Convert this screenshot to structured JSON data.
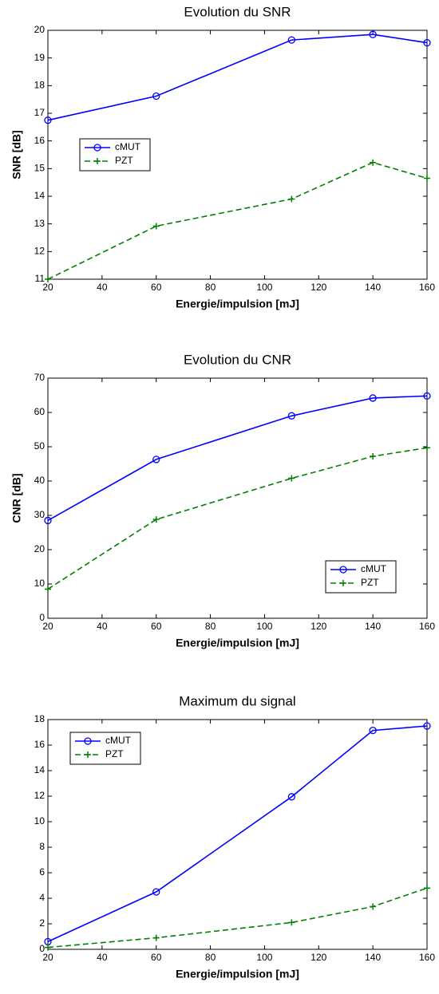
{
  "chart_data": [
    {
      "type": "line",
      "title": "Evolution du SNR",
      "x_label": "Energie/impulsion [mJ]",
      "y_label": "SNR [dB]",
      "x": [
        20,
        60,
        110,
        140,
        160
      ],
      "series": [
        {
          "name": "cMUT",
          "color": "#0000ff",
          "linestyle": "solid",
          "marker": "circle",
          "values": [
            16.75,
            17.62,
            19.65,
            19.85,
            19.55
          ]
        },
        {
          "name": "PZT",
          "color": "#008000",
          "linestyle": "dashed",
          "marker": "plus",
          "values": [
            11.0,
            12.92,
            13.9,
            15.22,
            14.65
          ]
        }
      ],
      "xlim": [
        20,
        160
      ],
      "xticks": [
        20,
        40,
        60,
        80,
        100,
        120,
        140,
        160
      ],
      "ylim": [
        11,
        20
      ],
      "yticks": [
        11,
        12,
        13,
        14,
        15,
        16,
        17,
        18,
        19,
        20
      ],
      "legend": "center left"
    },
    {
      "type": "line",
      "title": "Evolution du CNR",
      "x_label": "Energie/impulsion [mJ]",
      "y_label": "CNR [dB]",
      "x": [
        20,
        60,
        110,
        140,
        160
      ],
      "series": [
        {
          "name": "cMUT",
          "color": "#0000ff",
          "linestyle": "solid",
          "marker": "circle",
          "values": [
            28.5,
            46.3,
            59.0,
            64.2,
            64.8
          ]
        },
        {
          "name": "PZT",
          "color": "#008000",
          "linestyle": "dashed",
          "marker": "plus",
          "values": [
            8.5,
            28.8,
            40.8,
            47.2,
            49.7
          ]
        }
      ],
      "xlim": [
        20,
        160
      ],
      "xticks": [
        20,
        40,
        60,
        80,
        100,
        120,
        140,
        160
      ],
      "ylim": [
        0,
        70
      ],
      "yticks": [
        0,
        10,
        20,
        30,
        40,
        50,
        60,
        70
      ],
      "legend": "lower right"
    },
    {
      "type": "line",
      "title": "Maximum du signal",
      "x_label": "Energie/impulsion [mJ]",
      "x": [
        20,
        60,
        110,
        140,
        160
      ],
      "series": [
        {
          "name": "cMUT",
          "color": "#0000ff",
          "linestyle": "solid",
          "marker": "circle",
          "values": [
            0.6,
            4.5,
            11.95,
            17.15,
            17.5
          ]
        },
        {
          "name": "PZT",
          "color": "#008000",
          "linestyle": "dashed",
          "marker": "plus",
          "values": [
            0.15,
            0.9,
            2.1,
            3.35,
            4.8
          ]
        }
      ],
      "xlim": [
        20,
        160
      ],
      "xticks": [
        20,
        40,
        60,
        80,
        100,
        120,
        140,
        160
      ],
      "ylim": [
        0,
        18
      ],
      "yticks": [
        0,
        2,
        4,
        6,
        8,
        10,
        12,
        14,
        16,
        18
      ],
      "legend": "upper left"
    }
  ]
}
